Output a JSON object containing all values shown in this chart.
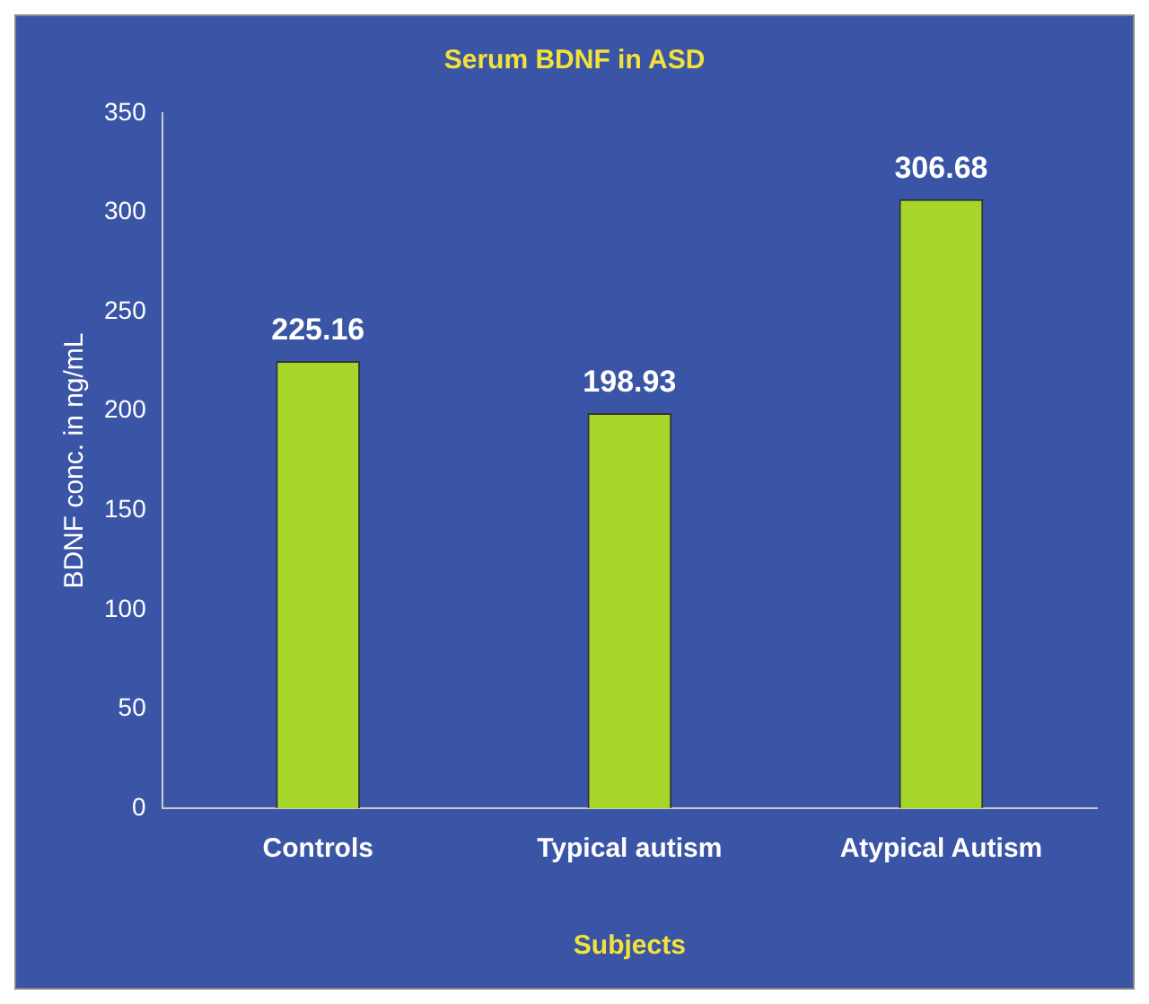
{
  "chart_data": {
    "type": "bar",
    "title": "Serum BDNF in ASD",
    "xlabel": "Subjects",
    "ylabel": "BDNF conc. in ng/mL",
    "categories": [
      "Controls",
      "Typical autism",
      "Atypical Autism"
    ],
    "values": [
      225.16,
      198.93,
      306.68
    ],
    "color": "#a6d62a",
    "ylim": [
      0,
      350
    ],
    "yticks": [
      0,
      50,
      100,
      150,
      200,
      250,
      300,
      350
    ],
    "grid": false,
    "legend": false,
    "data_labels": true
  }
}
